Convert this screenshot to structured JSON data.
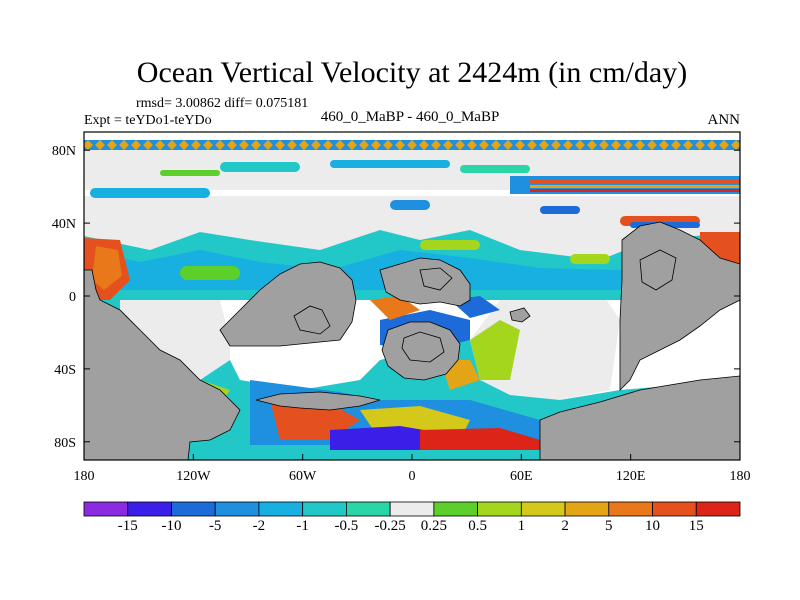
{
  "chart_data": {
    "type": "heatmap",
    "title": "Ocean Vertical Velocity at 2424m (in cm/day)",
    "stats_line": "rmsd= 3.00862  diff= 0.075181",
    "expt_label": "Expt = teYDo1-teYDo",
    "subtitle": "460_0_MaBP - 460_0_MaBP",
    "season": "ANN",
    "x_ticks": [
      "180",
      "120W",
      "60W",
      "0",
      "60E",
      "120E",
      "180"
    ],
    "y_ticks": [
      "80N",
      "40N",
      "0",
      "40S",
      "80S"
    ],
    "xlim": [
      -180,
      180
    ],
    "ylim": [
      -90,
      90
    ],
    "colorbar": {
      "labels": [
        "-15",
        "-10",
        "-5",
        "-2",
        "-1",
        "-0.5",
        "-0.25",
        "0.25",
        "0.5",
        "1",
        "2",
        "5",
        "10",
        "15"
      ],
      "colors": [
        "#8a2be2",
        "#3b1ee8",
        "#1d6bd8",
        "#1f8fe0",
        "#18b0e0",
        "#22c8c8",
        "#2ad6a8",
        "#ececec",
        "#5ccf2a",
        "#a5d61e",
        "#d4c81a",
        "#e3a416",
        "#e8781a",
        "#e4501e",
        "#dc2418"
      ]
    }
  }
}
